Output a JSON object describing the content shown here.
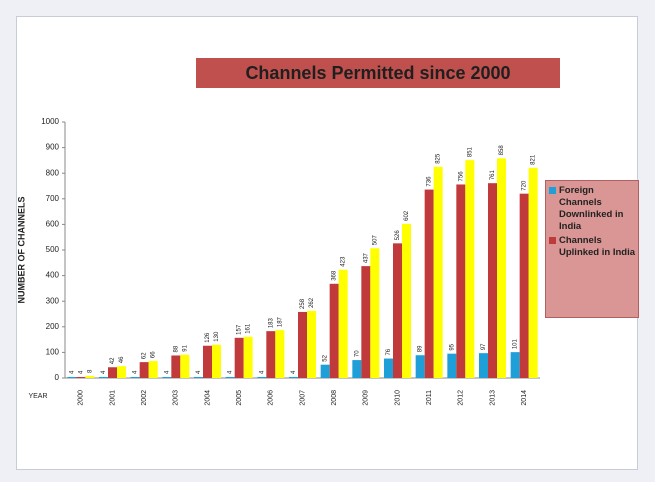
{
  "chart_data": {
    "type": "bar",
    "title": "Channels Permitted since 2000",
    "y_label": "NUMBER OF CHANNELS",
    "x_label": "YEAR",
    "categories": [
      "2000",
      "2001",
      "2002",
      "2003",
      "2004",
      "2005",
      "2006",
      "2007",
      "2008",
      "2009",
      "2010",
      "2011",
      "2012",
      "2013",
      "2014"
    ],
    "series": [
      {
        "name": "Foreign Channels Downlinked in India",
        "color": "#1e9fd8",
        "values": [
          4,
          4,
          4,
          4,
          4,
          4,
          4,
          4,
          52,
          70,
          76,
          89,
          95,
          97,
          101
        ]
      },
      {
        "name": "Channels Uplinked in India",
        "color": "#c0393b",
        "values": [
          4,
          42,
          62,
          88,
          126,
          157,
          183,
          258,
          368,
          437,
          526,
          736,
          756,
          761,
          720
        ]
      },
      {
        "color": "#ffff00",
        "values": [
          8,
          46,
          66,
          91,
          130,
          161,
          187,
          262,
          423,
          507,
          602,
          825,
          851,
          858,
          821
        ]
      }
    ],
    "ylim": [
      0,
      1000
    ],
    "yticks": [
      0,
      100,
      200,
      300,
      400,
      500,
      600,
      700,
      800,
      900,
      1000
    ],
    "legend": "right"
  }
}
